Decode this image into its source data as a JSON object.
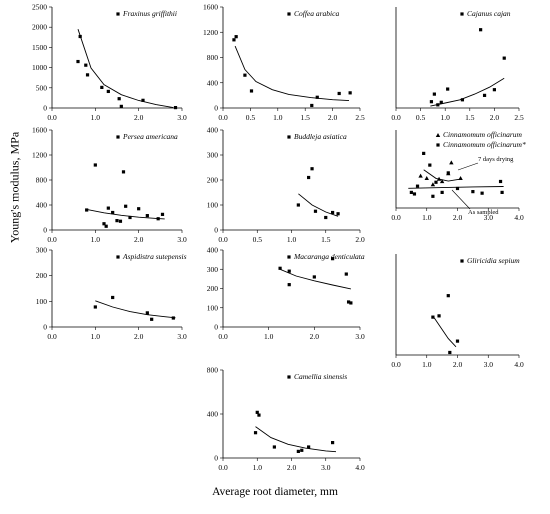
{
  "figure": {
    "ylabel": "Young's modulus, MPa",
    "xlabel": "Average root diameter, mm"
  },
  "chart_data": [
    {
      "type": "scatter",
      "series_name": "Fraxinus griffithii",
      "xlim": [
        0,
        3
      ],
      "ylim": [
        0,
        2500
      ],
      "xticks": [
        "0.0",
        "1.0",
        "2.0",
        "3.0"
      ],
      "yticks": [
        "0",
        "500",
        "1000",
        "1500",
        "2000",
        "2500"
      ],
      "points": [
        [
          0.6,
          1150
        ],
        [
          0.65,
          1770
        ],
        [
          0.78,
          1060
        ],
        [
          0.82,
          820
        ],
        [
          1.15,
          510
        ],
        [
          1.3,
          410
        ],
        [
          1.55,
          230
        ],
        [
          1.6,
          40
        ],
        [
          2.1,
          190
        ],
        [
          2.85,
          10
        ]
      ],
      "trendline": [
        [
          0.6,
          1950
        ],
        [
          0.9,
          990
        ],
        [
          1.2,
          580
        ],
        [
          1.6,
          330
        ],
        [
          2.0,
          185
        ],
        [
          2.4,
          85
        ],
        [
          2.8,
          10
        ]
      ]
    },
    {
      "type": "scatter",
      "series_name": "Coffea arabica",
      "xlim": [
        0,
        2.5
      ],
      "ylim": [
        0,
        1600
      ],
      "xticks": [
        "0.0",
        "0.5",
        "1.0",
        "1.5",
        "2.0",
        "2.5"
      ],
      "yticks": [
        "0",
        "400",
        "800",
        "1200",
        "1600"
      ],
      "points": [
        [
          0.2,
          1080
        ],
        [
          0.24,
          1130
        ],
        [
          0.4,
          520
        ],
        [
          0.52,
          270
        ],
        [
          1.62,
          40
        ],
        [
          1.72,
          170
        ],
        [
          2.12,
          230
        ],
        [
          2.32,
          240
        ]
      ],
      "trendline": [
        [
          0.22,
          980
        ],
        [
          0.4,
          610
        ],
        [
          0.6,
          420
        ],
        [
          0.9,
          290
        ],
        [
          1.2,
          215
        ],
        [
          1.6,
          165
        ],
        [
          2.0,
          132
        ],
        [
          2.3,
          118
        ]
      ]
    },
    {
      "type": "scatter",
      "series_name": "Cajanus cajan",
      "xlim": [
        0,
        2.5
      ],
      "ylim": [
        0,
        1600
      ],
      "xticks": [
        "0.0",
        "0.5",
        "1.0",
        "1.5",
        "2.0",
        "2.5"
      ],
      "yticks": [],
      "points": [
        [
          0.72,
          100
        ],
        [
          0.78,
          220
        ],
        [
          0.85,
          50
        ],
        [
          0.92,
          90
        ],
        [
          1.05,
          300
        ],
        [
          1.35,
          130
        ],
        [
          1.72,
          1240
        ],
        [
          1.8,
          200
        ],
        [
          2.0,
          290
        ],
        [
          2.2,
          790
        ]
      ],
      "trendline": [
        [
          0.7,
          30
        ],
        [
          1.0,
          80
        ],
        [
          1.3,
          130
        ],
        [
          1.6,
          220
        ],
        [
          1.9,
          330
        ],
        [
          2.2,
          470
        ]
      ]
    },
    {
      "type": "scatter",
      "series_name": "Persea americana",
      "xlim": [
        0,
        3
      ],
      "ylim": [
        0,
        1600
      ],
      "xticks": [
        "0.0",
        "1.0",
        "2.0",
        "3.0"
      ],
      "yticks": [
        "0",
        "400",
        "800",
        "1200",
        "1600"
      ],
      "points": [
        [
          0.8,
          320
        ],
        [
          1.0,
          1040
        ],
        [
          1.2,
          100
        ],
        [
          1.25,
          60
        ],
        [
          1.3,
          350
        ],
        [
          1.4,
          280
        ],
        [
          1.5,
          150
        ],
        [
          1.58,
          140
        ],
        [
          1.65,
          930
        ],
        [
          1.7,
          380
        ],
        [
          1.8,
          200
        ],
        [
          2.0,
          340
        ],
        [
          2.2,
          230
        ],
        [
          2.45,
          180
        ],
        [
          2.55,
          250
        ]
      ],
      "trendline": [
        [
          0.8,
          330
        ],
        [
          1.2,
          275
        ],
        [
          1.6,
          235
        ],
        [
          2.0,
          205
        ],
        [
          2.4,
          185
        ],
        [
          2.6,
          178
        ]
      ]
    },
    {
      "type": "scatter",
      "series_name": "Buddleja asiatica",
      "xlim": [
        0,
        2
      ],
      "ylim": [
        0,
        400
      ],
      "xticks": [
        "0.0",
        "0.5",
        "1.0",
        "1.5",
        "2.0"
      ],
      "yticks": [
        "0",
        "100",
        "200",
        "300",
        "400"
      ],
      "points": [
        [
          1.1,
          100
        ],
        [
          1.25,
          210
        ],
        [
          1.3,
          245
        ],
        [
          1.35,
          75
        ],
        [
          1.5,
          50
        ],
        [
          1.6,
          70
        ],
        [
          1.68,
          65
        ]
      ],
      "trendline": [
        [
          1.1,
          145
        ],
        [
          1.3,
          100
        ],
        [
          1.5,
          72
        ],
        [
          1.68,
          55
        ]
      ]
    },
    {
      "type": "scatter",
      "series_name": "Cinnamomum officinarum",
      "xlim": [
        0,
        4
      ],
      "ylim": [
        0,
        1000
      ],
      "xticks": [
        "0.0",
        "1.0",
        "2.0",
        "3.0",
        "4.0"
      ],
      "yticks": [],
      "legend": [
        "Cinnamomum officinarum",
        "Cinnamomum officinarum*"
      ],
      "annotations": [
        "7 days drying",
        "As sampled"
      ],
      "points_dried": [
        [
          0.8,
          410
        ],
        [
          1.0,
          380
        ],
        [
          1.2,
          300
        ],
        [
          1.4,
          370
        ],
        [
          1.5,
          340
        ],
        [
          1.7,
          440
        ],
        [
          1.8,
          580
        ],
        [
          2.1,
          380
        ]
      ],
      "points_sampled": [
        [
          0.5,
          200
        ],
        [
          0.7,
          280
        ],
        [
          0.9,
          700
        ],
        [
          1.1,
          550
        ],
        [
          1.3,
          330
        ],
        [
          1.5,
          200
        ],
        [
          1.7,
          450
        ],
        [
          2.0,
          250
        ],
        [
          2.5,
          210
        ],
        [
          2.8,
          190
        ],
        [
          3.4,
          340
        ],
        [
          3.45,
          200
        ],
        [
          0.6,
          180
        ],
        [
          1.2,
          150
        ]
      ],
      "trend_dried": [
        [
          0.9,
          490
        ],
        [
          1.3,
          380
        ],
        [
          1.7,
          345
        ],
        [
          2.1,
          370
        ]
      ],
      "trend_sampled": [
        [
          0.4,
          252
        ],
        [
          1.5,
          262
        ],
        [
          2.5,
          270
        ],
        [
          3.5,
          276
        ]
      ]
    },
    {
      "type": "scatter",
      "series_name": "Aspidistra sutepensis",
      "xlim": [
        0,
        3
      ],
      "ylim": [
        0,
        300
      ],
      "xticks": [
        "0.0",
        "1.0",
        "2.0",
        "3.0"
      ],
      "yticks": [
        "0",
        "100",
        "200",
        "300"
      ],
      "points": [
        [
          1.0,
          78
        ],
        [
          1.4,
          115
        ],
        [
          2.2,
          55
        ],
        [
          2.3,
          30
        ],
        [
          2.8,
          35
        ]
      ],
      "trendline": [
        [
          1.0,
          102
        ],
        [
          1.4,
          78
        ],
        [
          1.8,
          60
        ],
        [
          2.2,
          48
        ],
        [
          2.6,
          40
        ],
        [
          2.85,
          36
        ]
      ]
    },
    {
      "type": "scatter",
      "series_name": "Macaranga denticulata",
      "xlim": [
        0,
        3
      ],
      "ylim": [
        0,
        400
      ],
      "xticks": [
        "0.0",
        "1.0",
        "2.0",
        "3.0"
      ],
      "yticks": [
        "0",
        "100",
        "200",
        "300",
        "400"
      ],
      "points": [
        [
          1.25,
          305
        ],
        [
          1.45,
          290
        ],
        [
          1.45,
          220
        ],
        [
          2.0,
          260
        ],
        [
          2.4,
          355
        ],
        [
          2.7,
          275
        ],
        [
          2.75,
          130
        ],
        [
          2.8,
          125
        ]
      ],
      "trendline": [
        [
          1.25,
          300
        ],
        [
          1.6,
          265
        ],
        [
          2.0,
          240
        ],
        [
          2.4,
          218
        ],
        [
          2.8,
          198
        ]
      ]
    },
    {
      "type": "scatter",
      "series_name": "Gliricidia sepium",
      "xlim": [
        0,
        4
      ],
      "ylim": [
        0,
        800
      ],
      "xticks": [
        "0.0",
        "1.0",
        "2.0",
        "3.0",
        "4.0"
      ],
      "yticks": [],
      "points": [
        [
          1.2,
          300
        ],
        [
          1.4,
          310
        ],
        [
          1.7,
          470
        ],
        [
          1.75,
          20
        ],
        [
          2.0,
          110
        ]
      ],
      "trendline": [
        [
          1.2,
          310
        ],
        [
          1.45,
          220
        ],
        [
          1.7,
          130
        ],
        [
          1.95,
          65
        ]
      ]
    },
    {
      "type": "scatter",
      "series_name": "Camellia sinensis",
      "xlim": [
        0,
        4
      ],
      "ylim": [
        0,
        800
      ],
      "xticks": [
        "0.0",
        "1.0",
        "2.0",
        "3.0",
        "4.0"
      ],
      "yticks": [
        "0",
        "400",
        "800"
      ],
      "points": [
        [
          0.95,
          230
        ],
        [
          1.0,
          415
        ],
        [
          1.05,
          390
        ],
        [
          1.5,
          100
        ],
        [
          2.2,
          60
        ],
        [
          2.3,
          70
        ],
        [
          2.5,
          100
        ],
        [
          3.2,
          140
        ]
      ],
      "trendline": [
        [
          0.95,
          285
        ],
        [
          1.4,
          185
        ],
        [
          1.9,
          125
        ],
        [
          2.4,
          90
        ],
        [
          3.0,
          65
        ],
        [
          3.3,
          57
        ]
      ]
    }
  ]
}
